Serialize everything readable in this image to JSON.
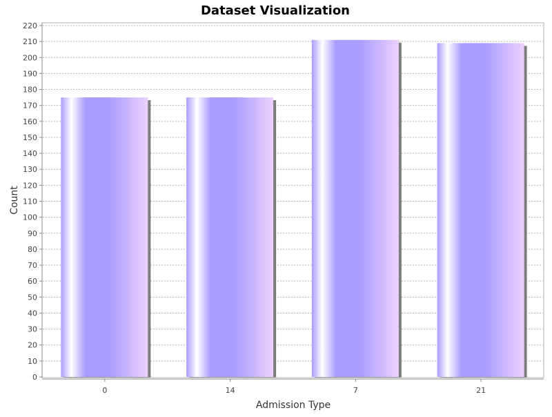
{
  "chart_data": {
    "type": "bar",
    "title": "Dataset Visualization",
    "xlabel": "Admission Type",
    "ylabel": "Count",
    "categories": [
      "0",
      "14",
      "7",
      "21"
    ],
    "values": [
      175,
      175,
      211,
      209
    ],
    "ylim": [
      0,
      222
    ],
    "y_ticks": [
      0,
      10,
      20,
      30,
      40,
      50,
      60,
      70,
      80,
      90,
      100,
      110,
      120,
      130,
      140,
      150,
      160,
      170,
      180,
      190,
      200,
      210,
      220
    ],
    "grid": true,
    "legend": "none"
  },
  "colors": {
    "bar_dark": "#a99cff",
    "bar_light": "#ffffff",
    "bar_pink": "#ecd1ff",
    "shadow": "#7c7c7c",
    "grid": "#b4b4b4",
    "axis": "#888888"
  }
}
